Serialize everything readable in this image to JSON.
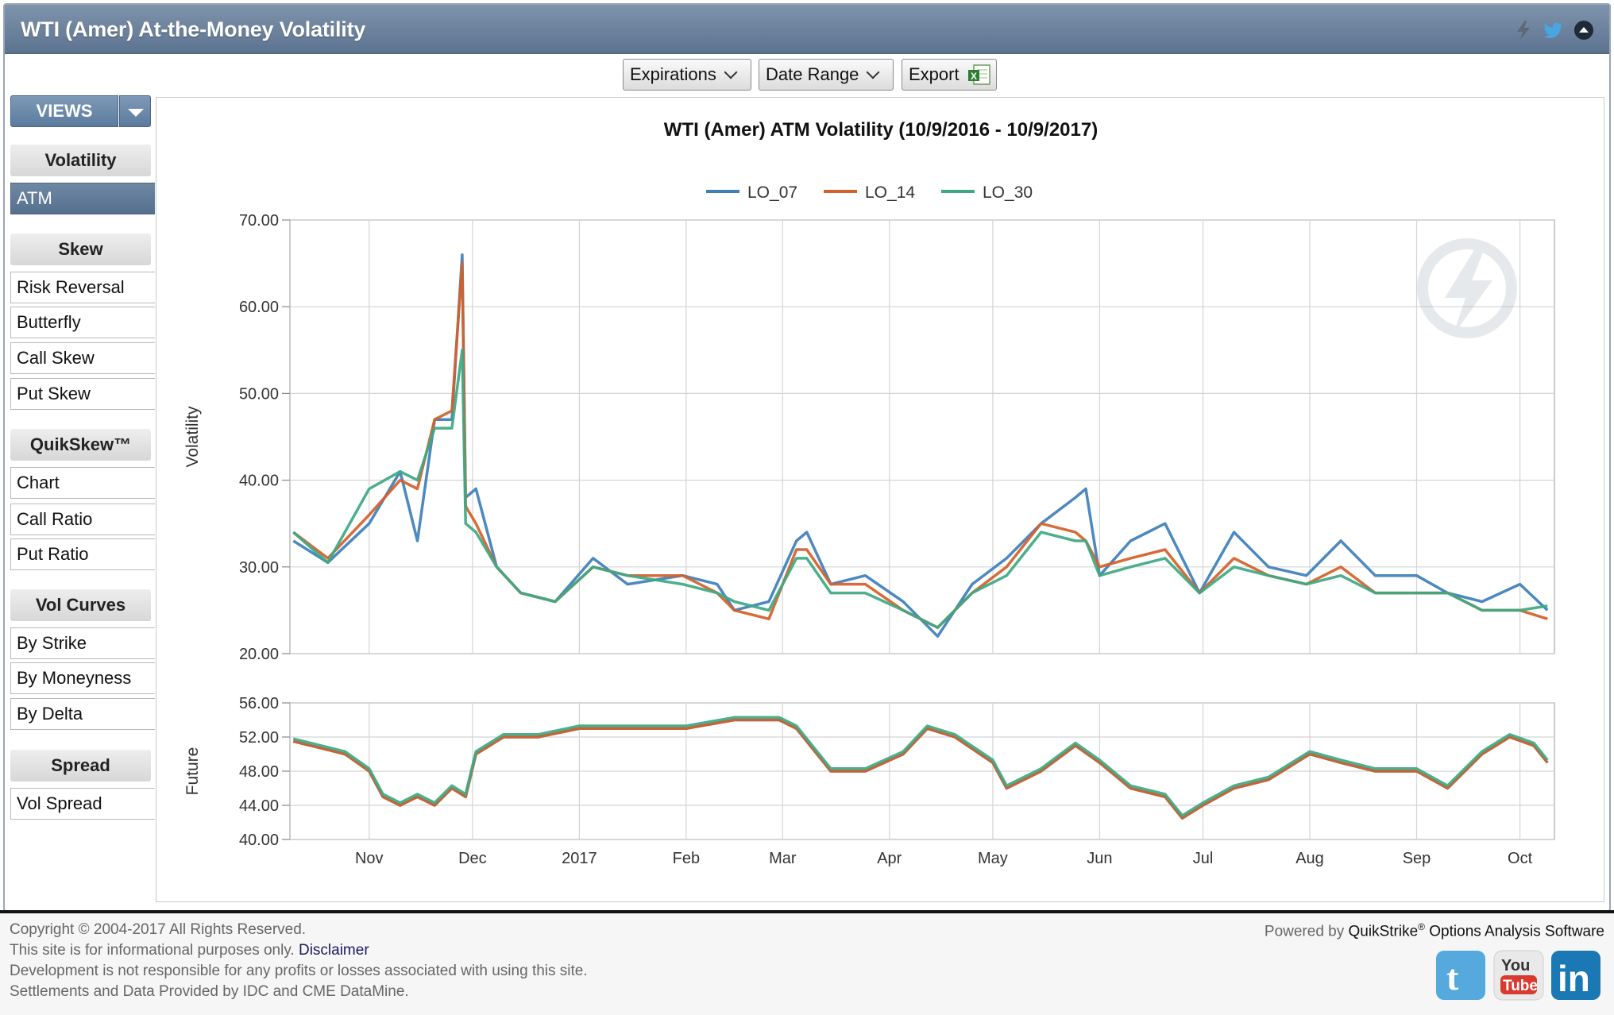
{
  "window": {
    "title": "WTI (Amer) At-the-Money Volatility",
    "icons": [
      "lightning-icon",
      "twitter-icon",
      "collapse-icon"
    ]
  },
  "toolbar": {
    "expirations_label": "Expirations",
    "date_range_label": "Date Range",
    "export_label": "Export"
  },
  "sidebar": {
    "views_label": "VIEWS",
    "sections": [
      {
        "heading": "Volatility",
        "items": [
          {
            "label": "ATM",
            "active": true
          }
        ]
      },
      {
        "heading": "Skew",
        "items": [
          {
            "label": "Risk Reversal"
          },
          {
            "label": "Butterfly"
          },
          {
            "label": "Call Skew"
          },
          {
            "label": "Put Skew"
          }
        ]
      },
      {
        "heading": "QuikSkew™",
        "items": [
          {
            "label": "Chart"
          },
          {
            "label": "Call Ratio"
          },
          {
            "label": "Put Ratio"
          }
        ]
      },
      {
        "heading": "Vol Curves",
        "items": [
          {
            "label": "By Strike"
          },
          {
            "label": "By Moneyness"
          },
          {
            "label": "By Delta"
          }
        ]
      },
      {
        "heading": "Spread",
        "items": [
          {
            "label": "Vol Spread"
          }
        ]
      }
    ]
  },
  "footer": {
    "copyright": "Copyright © 2004-2017 All Rights Reserved.",
    "info_prefix": "This site is for informational purposes only.",
    "disclaimer_link": "Disclaimer",
    "responsibility": "Development is not responsible for any profits or losses associated with using this site.",
    "settlements": "Settlements and Data Provided by IDC and CME DataMine.",
    "powered_prefix": "Powered by",
    "powered_brand": "QuikStrike",
    "powered_suffix": "Options Analysis Software",
    "social": [
      "twitter-icon",
      "youtube-icon",
      "linkedin-icon"
    ]
  },
  "colors": {
    "lo07": "#3d7fbb",
    "lo14": "#d4602a",
    "lo30": "#3ea882",
    "titlebar": "#6b819c"
  },
  "chart_data": [
    {
      "type": "line",
      "title": "WTI (Amer) ATM Volatility (10/9/2016 - 10/9/2017)",
      "ylabel": "Volatility",
      "ylim": [
        20,
        70
      ],
      "yticks": [
        "70.00",
        "60.00",
        "50.00",
        "40.00",
        "30.00",
        "20.00"
      ],
      "x_tick_labels": [
        "Nov",
        "Dec",
        "2017",
        "Feb",
        "Mar",
        "Apr",
        "May",
        "Jun",
        "Jul",
        "Aug",
        "Sep",
        "Oct"
      ],
      "legend": [
        "LO_07",
        "LO_14",
        "LO_30"
      ],
      "legend_position": "top-center",
      "grid": true,
      "series": [
        {
          "name": "LO_07",
          "x": [
            "2016-10-10",
            "2016-10-20",
            "2016-11-01",
            "2016-11-10",
            "2016-11-15",
            "2016-11-20",
            "2016-11-25",
            "2016-11-28",
            "2016-11-29",
            "2016-12-02",
            "2016-12-08",
            "2016-12-15",
            "2016-12-25",
            "2017-01-05",
            "2017-01-15",
            "2017-01-31",
            "2017-02-10",
            "2017-02-15",
            "2017-02-25",
            "2017-03-05",
            "2017-03-08",
            "2017-03-15",
            "2017-03-25",
            "2017-04-05",
            "2017-04-15",
            "2017-04-25",
            "2017-05-05",
            "2017-05-15",
            "2017-05-25",
            "2017-05-28",
            "2017-06-01",
            "2017-06-10",
            "2017-06-20",
            "2017-06-30",
            "2017-07-10",
            "2017-07-20",
            "2017-07-31",
            "2017-08-10",
            "2017-08-20",
            "2017-09-01",
            "2017-09-10",
            "2017-09-20",
            "2017-10-01",
            "2017-10-09"
          ],
          "values": [
            33,
            30.5,
            35,
            41,
            33,
            47,
            47,
            66,
            38,
            39,
            30,
            27,
            26,
            31,
            28,
            29,
            28,
            25,
            26,
            33,
            34,
            28,
            29,
            26,
            22,
            28,
            31,
            35,
            38,
            39,
            29,
            33,
            35,
            27,
            34,
            30,
            29,
            33,
            29,
            29,
            27,
            26,
            28,
            25
          ]
        },
        {
          "name": "LO_14",
          "x": [
            "2016-10-10",
            "2016-10-20",
            "2016-11-01",
            "2016-11-10",
            "2016-11-15",
            "2016-11-20",
            "2016-11-25",
            "2016-11-28",
            "2016-11-29",
            "2016-12-02",
            "2016-12-08",
            "2016-12-15",
            "2016-12-25",
            "2017-01-05",
            "2017-01-15",
            "2017-01-31",
            "2017-02-10",
            "2017-02-15",
            "2017-02-25",
            "2017-03-05",
            "2017-03-08",
            "2017-03-15",
            "2017-03-25",
            "2017-04-05",
            "2017-04-15",
            "2017-04-25",
            "2017-05-05",
            "2017-05-15",
            "2017-05-25",
            "2017-05-28",
            "2017-06-01",
            "2017-06-10",
            "2017-06-20",
            "2017-06-30",
            "2017-07-10",
            "2017-07-20",
            "2017-07-31",
            "2017-08-10",
            "2017-08-20",
            "2017-09-01",
            "2017-09-10",
            "2017-09-20",
            "2017-10-01",
            "2017-10-09"
          ],
          "values": [
            34,
            31,
            36,
            40,
            39,
            47,
            48,
            65,
            37,
            35,
            30,
            27,
            26,
            30,
            29,
            29,
            27,
            25,
            24,
            32,
            32,
            28,
            28,
            25,
            23,
            27,
            30,
            35,
            34,
            33,
            30,
            31,
            32,
            27,
            31,
            29,
            28,
            30,
            27,
            27,
            27,
            25,
            25,
            24
          ]
        },
        {
          "name": "LO_30",
          "x": [
            "2016-10-10",
            "2016-10-20",
            "2016-11-01",
            "2016-11-10",
            "2016-11-15",
            "2016-11-20",
            "2016-11-25",
            "2016-11-28",
            "2016-11-29",
            "2016-12-02",
            "2016-12-08",
            "2016-12-15",
            "2016-12-25",
            "2017-01-05",
            "2017-01-15",
            "2017-01-31",
            "2017-02-10",
            "2017-02-15",
            "2017-02-25",
            "2017-03-05",
            "2017-03-08",
            "2017-03-15",
            "2017-03-25",
            "2017-04-05",
            "2017-04-15",
            "2017-04-25",
            "2017-05-05",
            "2017-05-15",
            "2017-05-25",
            "2017-05-28",
            "2017-06-01",
            "2017-06-10",
            "2017-06-20",
            "2017-06-30",
            "2017-07-10",
            "2017-07-20",
            "2017-07-31",
            "2017-08-10",
            "2017-08-20",
            "2017-09-01",
            "2017-09-10",
            "2017-09-20",
            "2017-10-01",
            "2017-10-09"
          ],
          "values": [
            34,
            30.5,
            39,
            41,
            40,
            46,
            46,
            55,
            35,
            34,
            30,
            27,
            26,
            30,
            29,
            28,
            27,
            26,
            25,
            31,
            31,
            27,
            27,
            25,
            23,
            27,
            29,
            34,
            33,
            33,
            29,
            30,
            31,
            27,
            30,
            29,
            28,
            29,
            27,
            27,
            27,
            25,
            25,
            25.5
          ]
        }
      ]
    },
    {
      "type": "line",
      "ylabel": "Future",
      "ylim": [
        40,
        56
      ],
      "yticks": [
        "56.00",
        "52.00",
        "48.00",
        "44.00",
        "40.00"
      ],
      "x_tick_labels": [
        "Nov",
        "Dec",
        "2017",
        "Feb",
        "Mar",
        "Apr",
        "May",
        "Jun",
        "Jul",
        "Aug",
        "Sep",
        "Oct"
      ],
      "grid": true,
      "series": [
        {
          "name": "LO_07",
          "x": [
            "2016-10-10",
            "2016-10-20",
            "2016-10-25",
            "2016-11-01",
            "2016-11-05",
            "2016-11-10",
            "2016-11-15",
            "2016-11-20",
            "2016-11-25",
            "2016-11-29",
            "2016-12-02",
            "2016-12-10",
            "2016-12-20",
            "2017-01-01",
            "2017-01-15",
            "2017-02-01",
            "2017-02-15",
            "2017-02-28",
            "2017-03-05",
            "2017-03-15",
            "2017-03-25",
            "2017-04-05",
            "2017-04-12",
            "2017-04-20",
            "2017-05-01",
            "2017-05-05",
            "2017-05-15",
            "2017-05-25",
            "2017-06-01",
            "2017-06-10",
            "2017-06-20",
            "2017-06-25",
            "2017-07-01",
            "2017-07-10",
            "2017-07-20",
            "2017-08-01",
            "2017-08-10",
            "2017-08-20",
            "2017-09-01",
            "2017-09-10",
            "2017-09-20",
            "2017-09-28",
            "2017-10-05",
            "2017-10-09"
          ],
          "values": [
            51.5,
            50.5,
            50,
            48,
            45,
            44,
            45,
            44,
            46,
            45,
            50,
            52,
            52,
            53,
            53,
            53,
            54,
            54,
            53,
            48,
            48,
            50,
            53,
            52,
            49,
            46,
            48,
            51,
            49,
            46,
            45,
            42.5,
            44,
            46,
            47,
            50,
            49,
            48,
            48,
            46,
            50,
            52,
            51,
            49
          ]
        },
        {
          "name": "LO_14",
          "x": [
            "2016-10-10",
            "2016-10-20",
            "2016-10-25",
            "2016-11-01",
            "2016-11-05",
            "2016-11-10",
            "2016-11-15",
            "2016-11-20",
            "2016-11-25",
            "2016-11-29",
            "2016-12-02",
            "2016-12-10",
            "2016-12-20",
            "2017-01-01",
            "2017-01-15",
            "2017-02-01",
            "2017-02-15",
            "2017-02-28",
            "2017-03-05",
            "2017-03-15",
            "2017-03-25",
            "2017-04-05",
            "2017-04-12",
            "2017-04-20",
            "2017-05-01",
            "2017-05-05",
            "2017-05-15",
            "2017-05-25",
            "2017-06-01",
            "2017-06-10",
            "2017-06-20",
            "2017-06-25",
            "2017-07-01",
            "2017-07-10",
            "2017-07-20",
            "2017-08-01",
            "2017-08-10",
            "2017-08-20",
            "2017-09-01",
            "2017-09-10",
            "2017-09-20",
            "2017-09-28",
            "2017-10-05",
            "2017-10-09"
          ],
          "values": [
            51.5,
            50.5,
            50,
            48,
            45,
            44,
            45,
            44,
            46,
            45,
            50,
            52,
            52,
            53,
            53,
            53,
            54,
            54,
            53,
            48,
            48,
            50,
            53,
            52,
            49,
            46,
            48,
            51,
            49,
            46,
            45,
            42.5,
            44,
            46,
            47,
            50,
            49,
            48,
            48,
            46,
            50,
            52,
            51,
            49
          ]
        },
        {
          "name": "LO_30",
          "x": [
            "2016-10-10",
            "2016-10-20",
            "2016-10-25",
            "2016-11-01",
            "2016-11-05",
            "2016-11-10",
            "2016-11-15",
            "2016-11-20",
            "2016-11-25",
            "2016-11-29",
            "2016-12-02",
            "2016-12-10",
            "2016-12-20",
            "2017-01-01",
            "2017-01-15",
            "2017-02-01",
            "2017-02-15",
            "2017-02-28",
            "2017-03-05",
            "2017-03-15",
            "2017-03-25",
            "2017-04-05",
            "2017-04-12",
            "2017-04-20",
            "2017-05-01",
            "2017-05-05",
            "2017-05-15",
            "2017-05-25",
            "2017-06-01",
            "2017-06-10",
            "2017-06-20",
            "2017-06-25",
            "2017-07-01",
            "2017-07-10",
            "2017-07-20",
            "2017-08-01",
            "2017-08-10",
            "2017-08-20",
            "2017-09-01",
            "2017-09-10",
            "2017-09-20",
            "2017-09-28",
            "2017-10-05",
            "2017-10-09"
          ],
          "values": [
            51.8,
            50.8,
            50.3,
            48.3,
            45.3,
            44.3,
            45.3,
            44.3,
            46.3,
            45.3,
            50.3,
            52.3,
            52.3,
            53.3,
            53.3,
            53.3,
            54.3,
            54.3,
            53.3,
            48.3,
            48.3,
            50.3,
            53.3,
            52.3,
            49.3,
            46.3,
            48.3,
            51.3,
            49.3,
            46.3,
            45.3,
            42.8,
            44.3,
            46.3,
            47.3,
            50.3,
            49.3,
            48.3,
            48.3,
            46.3,
            50.3,
            52.3,
            51.3,
            49.3
          ]
        }
      ]
    }
  ]
}
